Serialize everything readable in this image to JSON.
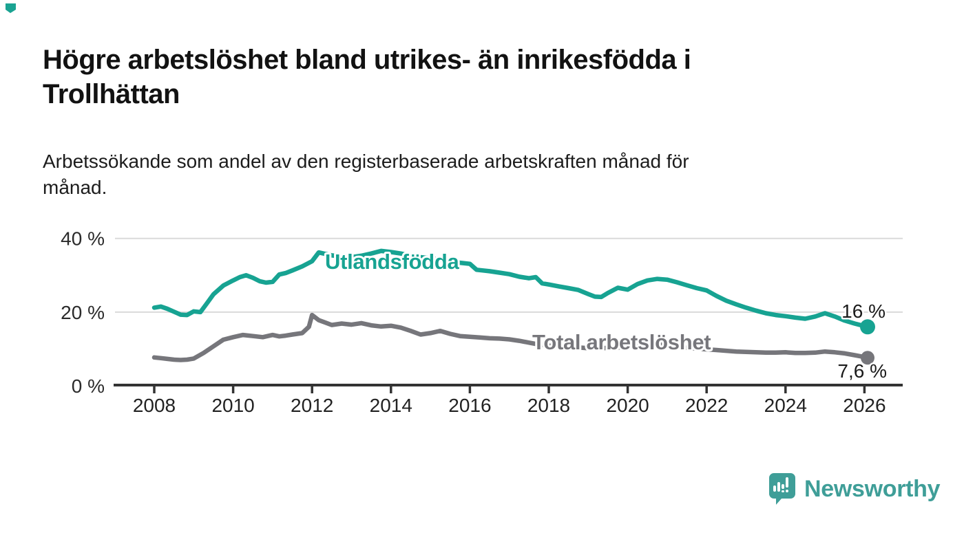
{
  "header": {
    "title_line1": "Högre arbetslöshet bland utrikes- än inrikesfödda i",
    "title_line2": "Trollhättan",
    "subtitle_line1": "Arbetssökande som andel av den registerbaserade arbetskraften månad för",
    "subtitle_line2": "månad."
  },
  "footer": {
    "brand": "Newsworthy"
  },
  "colors": {
    "accent_teal": "#17a392",
    "line_gray": "#76767b",
    "label_gray": "#77777c",
    "axis_dark": "#333333",
    "grid_light": "#dadada",
    "tick_text": "#222222",
    "value_text": "#1a1a1a",
    "logo_teal": "#3f9e98",
    "corner_mark": "#1aa392"
  },
  "chart_data": {
    "type": "line",
    "title": "Högre arbetslöshet bland utrikes- än inrikesfödda i Trollhättan",
    "subtitle": "Arbetssökande som andel av den registerbaserade arbetskraften månad för månad.",
    "xlabel": "",
    "ylabel": "",
    "grid": "horizontal",
    "legend_position": "inline-line-labels",
    "x_axis": {
      "range": [
        2007.0,
        2027.0
      ],
      "ticks": [
        {
          "value": 2008,
          "label": "2008"
        },
        {
          "value": 2010,
          "label": "2010"
        },
        {
          "value": 2012,
          "label": "2012"
        },
        {
          "value": 2014,
          "label": "2014"
        },
        {
          "value": 2016,
          "label": "2016"
        },
        {
          "value": 2018,
          "label": "2018"
        },
        {
          "value": 2020,
          "label": "2020"
        },
        {
          "value": 2022,
          "label": "2022"
        },
        {
          "value": 2024,
          "label": "2024"
        },
        {
          "value": 2026,
          "label": "2026"
        }
      ]
    },
    "y_axis": {
      "range": [
        0,
        42
      ],
      "unit": "%",
      "ticks": [
        {
          "value": 0,
          "label": "0 %"
        },
        {
          "value": 20,
          "label": "20 %"
        },
        {
          "value": 40,
          "label": "40 %"
        }
      ]
    },
    "series": [
      {
        "name": "Utlandsfödda",
        "color": "#17a392",
        "end_label": "16 %",
        "end_value": 16.0,
        "points": [
          [
            2008.0,
            21.2
          ],
          [
            2008.17,
            21.5
          ],
          [
            2008.33,
            20.9
          ],
          [
            2008.5,
            20.1
          ],
          [
            2008.67,
            19.3
          ],
          [
            2008.83,
            19.2
          ],
          [
            2009.0,
            20.2
          ],
          [
            2009.17,
            20.0
          ],
          [
            2009.33,
            22.3
          ],
          [
            2009.5,
            24.8
          ],
          [
            2009.75,
            27.2
          ],
          [
            2010.0,
            28.6
          ],
          [
            2010.17,
            29.5
          ],
          [
            2010.33,
            30.0
          ],
          [
            2010.5,
            29.3
          ],
          [
            2010.67,
            28.4
          ],
          [
            2010.83,
            28.0
          ],
          [
            2011.0,
            28.2
          ],
          [
            2011.17,
            30.2
          ],
          [
            2011.33,
            30.6
          ],
          [
            2011.5,
            31.3
          ],
          [
            2011.75,
            32.4
          ],
          [
            2012.0,
            33.8
          ],
          [
            2012.17,
            36.2
          ],
          [
            2012.33,
            35.8
          ],
          [
            2012.5,
            35.4
          ],
          [
            2012.75,
            35.1
          ],
          [
            2013.0,
            34.9
          ],
          [
            2013.25,
            35.3
          ],
          [
            2013.5,
            35.9
          ],
          [
            2013.75,
            36.6
          ],
          [
            2014.0,
            36.3
          ],
          [
            2014.25,
            35.9
          ],
          [
            2014.5,
            35.3
          ],
          [
            2014.75,
            34.9
          ],
          [
            2015.0,
            34.6
          ],
          [
            2015.25,
            34.2
          ],
          [
            2015.5,
            33.8
          ],
          [
            2015.75,
            33.4
          ],
          [
            2016.0,
            33.1
          ],
          [
            2016.17,
            31.5
          ],
          [
            2016.33,
            31.3
          ],
          [
            2016.5,
            31.1
          ],
          [
            2016.75,
            30.7
          ],
          [
            2017.0,
            30.3
          ],
          [
            2017.25,
            29.6
          ],
          [
            2017.5,
            29.2
          ],
          [
            2017.67,
            29.5
          ],
          [
            2017.83,
            27.8
          ],
          [
            2018.0,
            27.5
          ],
          [
            2018.25,
            27.0
          ],
          [
            2018.5,
            26.5
          ],
          [
            2018.75,
            26.0
          ],
          [
            2019.0,
            24.9
          ],
          [
            2019.17,
            24.2
          ],
          [
            2019.33,
            24.1
          ],
          [
            2019.5,
            25.2
          ],
          [
            2019.75,
            26.6
          ],
          [
            2020.0,
            26.1
          ],
          [
            2020.25,
            27.6
          ],
          [
            2020.5,
            28.6
          ],
          [
            2020.75,
            29.0
          ],
          [
            2021.0,
            28.8
          ],
          [
            2021.25,
            28.1
          ],
          [
            2021.5,
            27.3
          ],
          [
            2021.75,
            26.5
          ],
          [
            2022.0,
            25.9
          ],
          [
            2022.25,
            24.4
          ],
          [
            2022.5,
            23.1
          ],
          [
            2022.75,
            22.1
          ],
          [
            2023.0,
            21.2
          ],
          [
            2023.25,
            20.4
          ],
          [
            2023.5,
            19.7
          ],
          [
            2023.75,
            19.2
          ],
          [
            2024.0,
            18.9
          ],
          [
            2024.25,
            18.5
          ],
          [
            2024.5,
            18.2
          ],
          [
            2024.75,
            18.8
          ],
          [
            2025.0,
            19.7
          ],
          [
            2025.25,
            18.8
          ],
          [
            2025.5,
            17.7
          ],
          [
            2025.75,
            16.9
          ],
          [
            2026.0,
            16.2
          ],
          [
            2026.08,
            16.0
          ]
        ]
      },
      {
        "name": "Total arbetslöshet",
        "color": "#76767b",
        "end_label": "7,6 %",
        "end_value": 7.6,
        "points": [
          [
            2008.0,
            7.7
          ],
          [
            2008.17,
            7.5
          ],
          [
            2008.33,
            7.3
          ],
          [
            2008.5,
            7.1
          ],
          [
            2008.67,
            7.0
          ],
          [
            2008.83,
            7.1
          ],
          [
            2009.0,
            7.4
          ],
          [
            2009.25,
            8.9
          ],
          [
            2009.5,
            10.7
          ],
          [
            2009.75,
            12.5
          ],
          [
            2010.0,
            13.2
          ],
          [
            2010.25,
            13.8
          ],
          [
            2010.5,
            13.5
          ],
          [
            2010.75,
            13.2
          ],
          [
            2011.0,
            13.8
          ],
          [
            2011.17,
            13.4
          ],
          [
            2011.33,
            13.6
          ],
          [
            2011.5,
            13.9
          ],
          [
            2011.75,
            14.3
          ],
          [
            2011.92,
            16.0
          ],
          [
            2012.0,
            19.2
          ],
          [
            2012.17,
            17.8
          ],
          [
            2012.33,
            17.2
          ],
          [
            2012.5,
            16.5
          ],
          [
            2012.75,
            16.9
          ],
          [
            2013.0,
            16.6
          ],
          [
            2013.25,
            17.0
          ],
          [
            2013.5,
            16.4
          ],
          [
            2013.75,
            16.1
          ],
          [
            2014.0,
            16.3
          ],
          [
            2014.25,
            15.8
          ],
          [
            2014.5,
            14.9
          ],
          [
            2014.75,
            13.9
          ],
          [
            2015.0,
            14.3
          ],
          [
            2015.25,
            14.9
          ],
          [
            2015.5,
            14.1
          ],
          [
            2015.75,
            13.5
          ],
          [
            2016.0,
            13.3
          ],
          [
            2016.25,
            13.1
          ],
          [
            2016.5,
            12.9
          ],
          [
            2016.75,
            12.8
          ],
          [
            2017.0,
            12.6
          ],
          [
            2017.25,
            12.2
          ],
          [
            2017.5,
            11.7
          ],
          [
            2017.75,
            11.2
          ],
          [
            2018.0,
            10.9
          ],
          [
            2018.25,
            10.7
          ],
          [
            2018.5,
            10.6
          ],
          [
            2018.75,
            10.4
          ],
          [
            2019.0,
            10.2
          ],
          [
            2019.25,
            10.1
          ],
          [
            2019.5,
            10.3
          ],
          [
            2019.75,
            10.4
          ],
          [
            2020.0,
            10.4
          ],
          [
            2020.25,
            11.2
          ],
          [
            2020.5,
            11.5
          ],
          [
            2020.75,
            11.3
          ],
          [
            2021.0,
            11.0
          ],
          [
            2021.25,
            10.7
          ],
          [
            2021.5,
            10.3
          ],
          [
            2021.75,
            10.1
          ],
          [
            2022.0,
            9.9
          ],
          [
            2022.25,
            9.7
          ],
          [
            2022.5,
            9.5
          ],
          [
            2022.75,
            9.3
          ],
          [
            2023.0,
            9.2
          ],
          [
            2023.25,
            9.1
          ],
          [
            2023.5,
            9.0
          ],
          [
            2023.75,
            9.0
          ],
          [
            2024.0,
            9.1
          ],
          [
            2024.25,
            8.9
          ],
          [
            2024.5,
            8.9
          ],
          [
            2024.75,
            9.0
          ],
          [
            2025.0,
            9.3
          ],
          [
            2025.25,
            9.1
          ],
          [
            2025.5,
            8.8
          ],
          [
            2025.75,
            8.3
          ],
          [
            2026.0,
            7.8
          ],
          [
            2026.08,
            7.6
          ]
        ]
      }
    ]
  }
}
